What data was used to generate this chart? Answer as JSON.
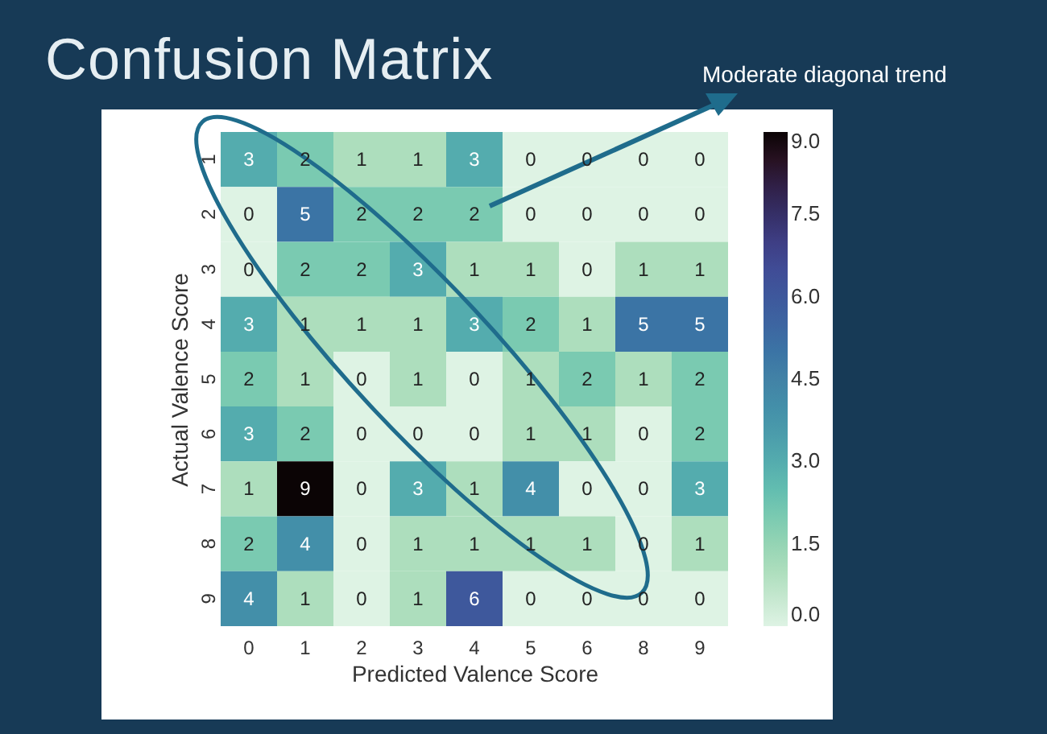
{
  "chart_data": {
    "type": "heatmap",
    "title": "Confusion Matrix",
    "xlabel": "Predicted Valence Score",
    "ylabel": "Actual Valence Score",
    "annotations": [
      "Moderate diagonal trend"
    ],
    "categories": [
      "0",
      "1",
      "2",
      "3",
      "4",
      "5",
      "6",
      "8",
      "9"
    ],
    "y_categories": [
      "1",
      "2",
      "3",
      "4",
      "5",
      "6",
      "7",
      "8",
      "9"
    ],
    "cells": [
      [
        3,
        2,
        1,
        1,
        3,
        0,
        0,
        0,
        0
      ],
      [
        0,
        5,
        2,
        2,
        2,
        0,
        0,
        0,
        0
      ],
      [
        0,
        2,
        2,
        3,
        1,
        1,
        0,
        1,
        1
      ],
      [
        3,
        1,
        1,
        1,
        3,
        2,
        1,
        5,
        5
      ],
      [
        2,
        1,
        0,
        1,
        0,
        1,
        2,
        1,
        2
      ],
      [
        3,
        2,
        0,
        0,
        0,
        1,
        1,
        0,
        2
      ],
      [
        1,
        9,
        0,
        3,
        1,
        4,
        0,
        0,
        3
      ],
      [
        2,
        4,
        0,
        1,
        1,
        1,
        1,
        0,
        1
      ],
      [
        4,
        1,
        0,
        1,
        6,
        0,
        0,
        0,
        0
      ]
    ],
    "clim": [
      0,
      9
    ],
    "cticks": [
      {
        "value": 0,
        "label": "0.0"
      },
      {
        "value": 1.5,
        "label": "1.5"
      },
      {
        "value": 3,
        "label": "3.0"
      },
      {
        "value": 4.5,
        "label": "4.5"
      },
      {
        "value": 6,
        "label": "6.0"
      },
      {
        "value": 7.5,
        "label": "7.5"
      },
      {
        "value": 9,
        "label": "9.0"
      }
    ],
    "data_labels": true
  }
}
